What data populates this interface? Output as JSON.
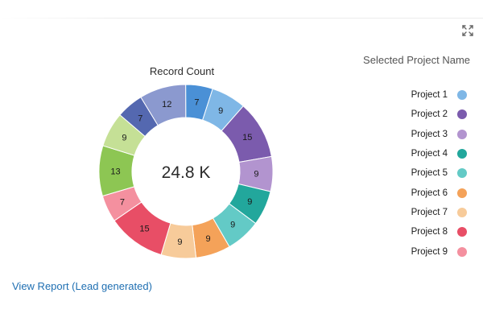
{
  "expand_icon": "expand-icon",
  "legend_title": "Selected Project Name",
  "view_report_link": "View Report (Lead generated)",
  "chart_data": {
    "type": "pie",
    "title": "Record Count",
    "center_label": "24.8 K",
    "segments": [
      {
        "value": 7,
        "color": "#4a90d6"
      },
      {
        "value": 9,
        "color": "#7fb7e6"
      },
      {
        "value": 15,
        "color": "#7b5bad"
      },
      {
        "value": 9,
        "color": "#b294cf"
      },
      {
        "value": 9,
        "color": "#22a79c"
      },
      {
        "value": 9,
        "color": "#63cac6"
      },
      {
        "value": 9,
        "color": "#f4a259"
      },
      {
        "value": 9,
        "color": "#f7cb9a"
      },
      {
        "value": 15,
        "color": "#e84e66"
      },
      {
        "value": 7,
        "color": "#f4909f"
      },
      {
        "value": 13,
        "color": "#8dc653"
      },
      {
        "value": 9,
        "color": "#c5e096"
      },
      {
        "value": 7,
        "color": "#5468b0"
      },
      {
        "value": 12,
        "color": "#8b99cf"
      }
    ],
    "legend": [
      {
        "label": "Project 1",
        "color": "#7fb7e6"
      },
      {
        "label": "Project 2",
        "color": "#7b5bad"
      },
      {
        "label": "Project 3",
        "color": "#b294cf"
      },
      {
        "label": "Project 4",
        "color": "#22a79c"
      },
      {
        "label": "Project 5",
        "color": "#63cac6"
      },
      {
        "label": "Project 6",
        "color": "#f4a259"
      },
      {
        "label": "Project 7",
        "color": "#f7cb9a"
      },
      {
        "label": "Project 8",
        "color": "#e84e66"
      },
      {
        "label": "Project 9",
        "color": "#f4909f"
      }
    ]
  }
}
